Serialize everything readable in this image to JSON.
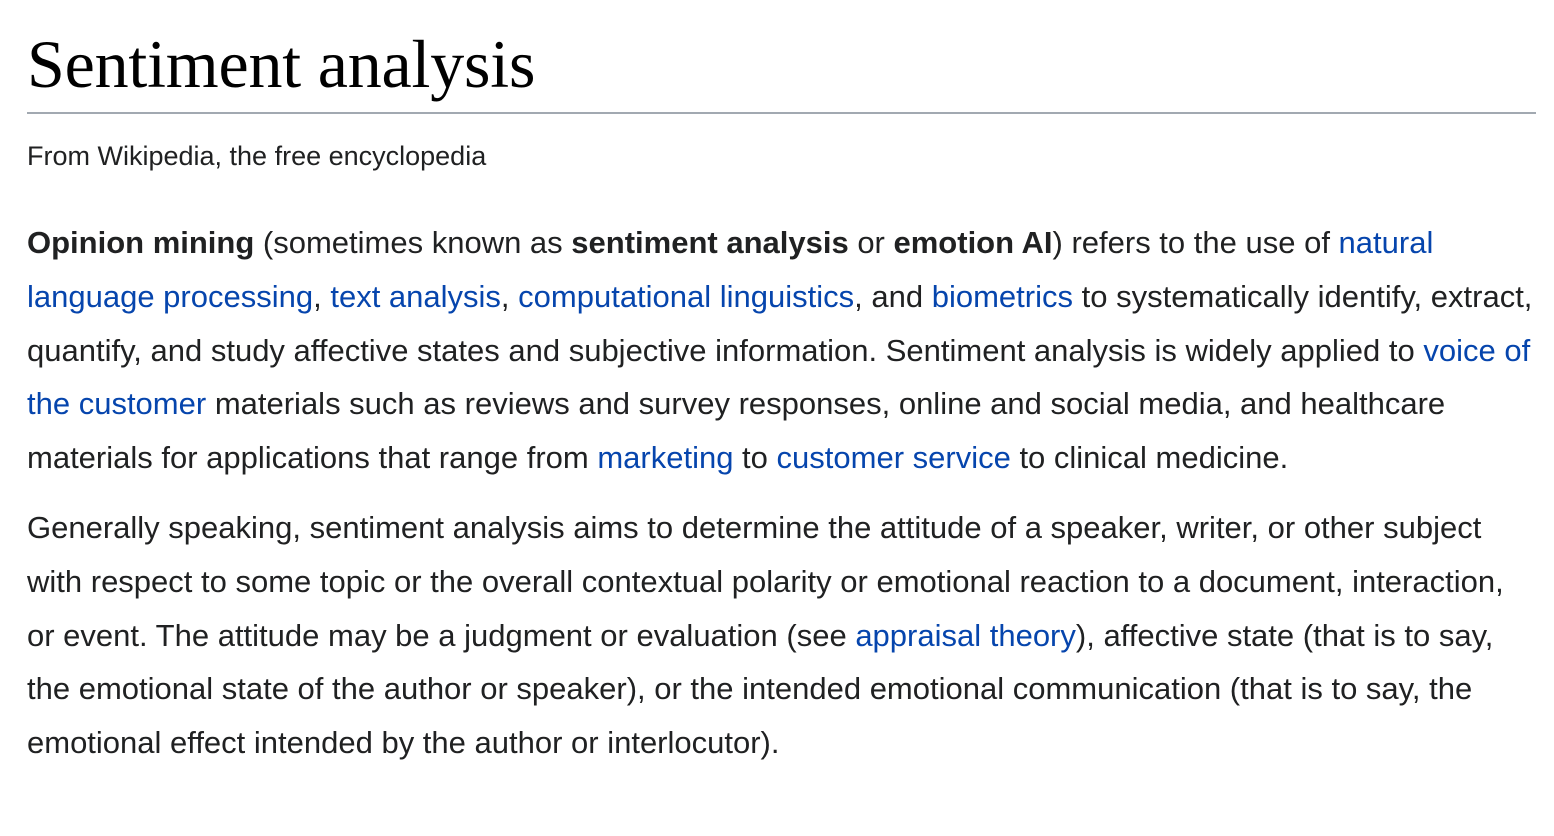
{
  "article": {
    "title": "Sentiment analysis",
    "subtitle": "From Wikipedia, the free encyclopedia"
  },
  "paragraph1": {
    "bold_opinion_mining": "Opinion mining",
    "t1": " (sometimes known as ",
    "bold_sentiment_analysis": "sentiment analysis",
    "t2": " or ",
    "bold_emotion_ai": "emotion AI",
    "t3": ") refers to the use of ",
    "link_nlp": "natural language processing",
    "t4": ", ",
    "link_text_analysis": "text analysis",
    "t5": ", ",
    "link_comp_ling": "computational linguistics",
    "t6": ", and ",
    "link_biometrics": "biometrics",
    "t7": " to systematically identify, extract, quantify, and study affective states and subjective information. Sentiment analysis is widely applied to ",
    "link_voc": "voice of the customer",
    "t8": " materials such as reviews and survey responses, online and social media, and healthcare materials for applications that range from ",
    "link_marketing": "marketing",
    "t9": " to ",
    "link_customer_service": "customer service",
    "t10": " to clinical medicine."
  },
  "paragraph2": {
    "t1": "Generally speaking, sentiment analysis aims to determine the attitude of a speaker, writer, or other subject with respect to some topic or the overall contextual polarity or emotional reaction to a document, interaction, or event. The attitude may be a judgment or evaluation (see ",
    "link_appraisal": "appraisal theory",
    "t2": "), affective state (that is to say, the emotional state of the author or speaker), or the intended emotional communication (that is to say, the emotional effect intended by the author or interlocutor)."
  },
  "colors": {
    "text": "#202122",
    "link": "#0645ad",
    "title_rule": "#a2a9b1"
  }
}
